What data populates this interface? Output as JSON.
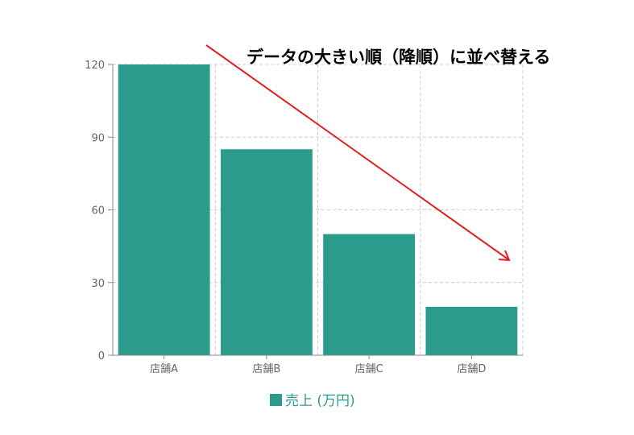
{
  "chart_data": {
    "type": "bar",
    "categories": [
      "店舗A",
      "店舗B",
      "店舗C",
      "店舗D"
    ],
    "series": [
      {
        "name": "売上 (万円)",
        "values": [
          120,
          85,
          50,
          20
        ]
      }
    ],
    "ylim": [
      0,
      120
    ],
    "yticks": [
      0,
      30,
      60,
      90,
      120
    ],
    "grid": true,
    "legend_position": "bottom",
    "annotation": {
      "text": "データの大きい順（降順）に並べ替える",
      "arrow": "descending"
    }
  },
  "colors": {
    "bar": "#2b9b8c",
    "arrow": "#e02020",
    "grid": "#cccccc",
    "axis": "#888888"
  }
}
